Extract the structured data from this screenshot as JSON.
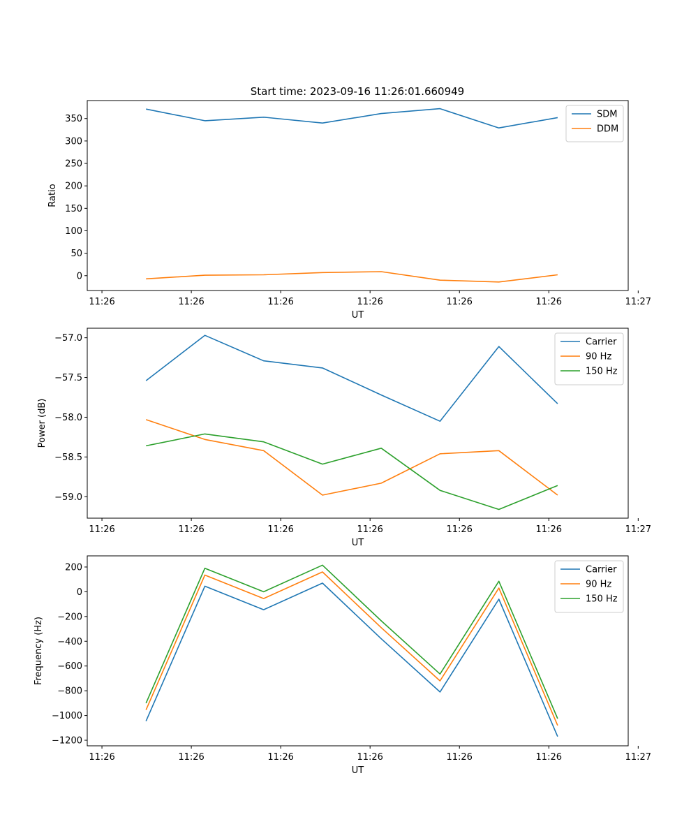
{
  "figure": {
    "title": "Start time: 2023-09-16 11:26:01.660949"
  },
  "colors": {
    "blue": "#1f77b4",
    "orange": "#ff7f0e",
    "green": "#2ca02c"
  },
  "chart_data": [
    {
      "type": "line",
      "title": "Start time: 2023-09-16 11:26:01.660949",
      "xlabel": "UT",
      "ylabel": "Ratio",
      "x": [
        1,
        2,
        3,
        4,
        5,
        6,
        7,
        8
      ],
      "xlim": [
        0,
        9.2
      ],
      "x_ticks": [
        0.25,
        1.77,
        3.29,
        4.81,
        6.33,
        7.85,
        9.37
      ],
      "x_tick_labels": [
        "11:26",
        "11:26",
        "11:26",
        "11:26",
        "11:26",
        "11:26",
        "11:27"
      ],
      "ylim": [
        -33,
        390
      ],
      "y_ticks": [
        0,
        50,
        100,
        150,
        200,
        250,
        300,
        350
      ],
      "y_tick_labels": [
        "0",
        "50",
        "100",
        "150",
        "200",
        "250",
        "300",
        "350"
      ],
      "legend_position": "top-right",
      "series": [
        {
          "name": "SDM",
          "color": "#1f77b4",
          "values": [
            371,
            345,
            353,
            340,
            361,
            372,
            329,
            352
          ]
        },
        {
          "name": "DDM",
          "color": "#ff7f0e",
          "values": [
            -7,
            1,
            2,
            7,
            9,
            -10,
            -14,
            2
          ]
        }
      ]
    },
    {
      "type": "line",
      "title": "",
      "xlabel": "UT",
      "ylabel": "Power (dB)",
      "x": [
        1,
        2,
        3,
        4,
        5,
        6,
        7,
        8
      ],
      "xlim": [
        0,
        9.2
      ],
      "x_ticks": [
        0.25,
        1.77,
        3.29,
        4.81,
        6.33,
        7.85,
        9.37
      ],
      "x_tick_labels": [
        "11:26",
        "11:26",
        "11:26",
        "11:26",
        "11:26",
        "11:26",
        "11:27"
      ],
      "ylim": [
        -59.27,
        -56.88
      ],
      "y_ticks": [
        -57.0,
        -57.5,
        -58.0,
        -58.5,
        -59.0
      ],
      "y_tick_labels": [
        "−57.0",
        "−57.5",
        "−58.0",
        "−58.5",
        "−59.0"
      ],
      "legend_position": "top-right",
      "series": [
        {
          "name": "Carrier",
          "color": "#1f77b4",
          "values": [
            -57.54,
            -56.97,
            -57.29,
            -57.38,
            -57.72,
            -58.05,
            -57.11,
            -57.83
          ]
        },
        {
          "name": "90 Hz",
          "color": "#ff7f0e",
          "values": [
            -58.03,
            -58.28,
            -58.42,
            -58.98,
            -58.83,
            -58.46,
            -58.42,
            -58.98
          ]
        },
        {
          "name": "150 Hz",
          "color": "#2ca02c",
          "values": [
            -58.36,
            -58.21,
            -58.31,
            -58.59,
            -58.39,
            -58.92,
            -59.16,
            -58.86
          ]
        }
      ]
    },
    {
      "type": "line",
      "title": "",
      "xlabel": "UT",
      "ylabel": "Frequency (Hz)",
      "x": [
        1,
        2,
        3,
        4,
        5,
        6,
        7,
        8
      ],
      "xlim": [
        0,
        9.2
      ],
      "x_ticks": [
        0.25,
        1.77,
        3.29,
        4.81,
        6.33,
        7.85,
        9.37
      ],
      "x_tick_labels": [
        "11:26",
        "11:26",
        "11:26",
        "11:26",
        "11:26",
        "11:26",
        "11:27"
      ],
      "ylim": [
        -1245,
        290
      ],
      "y_ticks": [
        200,
        0,
        -200,
        -400,
        -600,
        -800,
        -1000,
        -1200
      ],
      "y_tick_labels": [
        "200",
        "0",
        "−200",
        "−400",
        "−600",
        "−800",
        "−1000",
        "−1200"
      ],
      "legend_position": "top-right",
      "series": [
        {
          "name": "Carrier",
          "color": "#1f77b4",
          "values": [
            -1045,
            45,
            -145,
            70,
            -380,
            -810,
            -60,
            -1170
          ]
        },
        {
          "name": "90 Hz",
          "color": "#ff7f0e",
          "values": [
            -955,
            135,
            -55,
            160,
            -290,
            -720,
            30,
            -1080
          ]
        },
        {
          "name": "150 Hz",
          "color": "#2ca02c",
          "values": [
            -900,
            190,
            0,
            215,
            -235,
            -665,
            85,
            -1025
          ]
        }
      ]
    }
  ]
}
